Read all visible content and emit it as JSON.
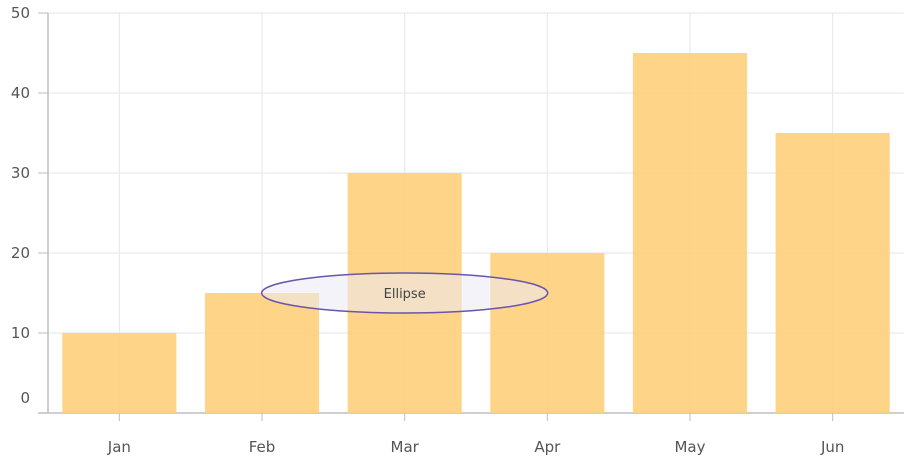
{
  "chart_data": {
    "type": "bar",
    "categories": [
      "Jan",
      "Feb",
      "Mar",
      "Apr",
      "May",
      "Jun"
    ],
    "values": [
      10,
      15,
      30,
      20,
      45,
      35
    ],
    "ylim": [
      0,
      50
    ],
    "yticks": [
      0,
      10,
      20,
      30,
      40,
      50
    ],
    "grid": true,
    "colors": {
      "bar": "#fdd07e",
      "grid": "#e6e5ec",
      "axis": "#bdbdc6",
      "annotation_fill": "#ede9f6",
      "annotation_stroke": "#6a55a8"
    },
    "annotation": {
      "shape": "ellipse",
      "text": "Ellipse",
      "x": "Mar",
      "y": 15
    }
  }
}
